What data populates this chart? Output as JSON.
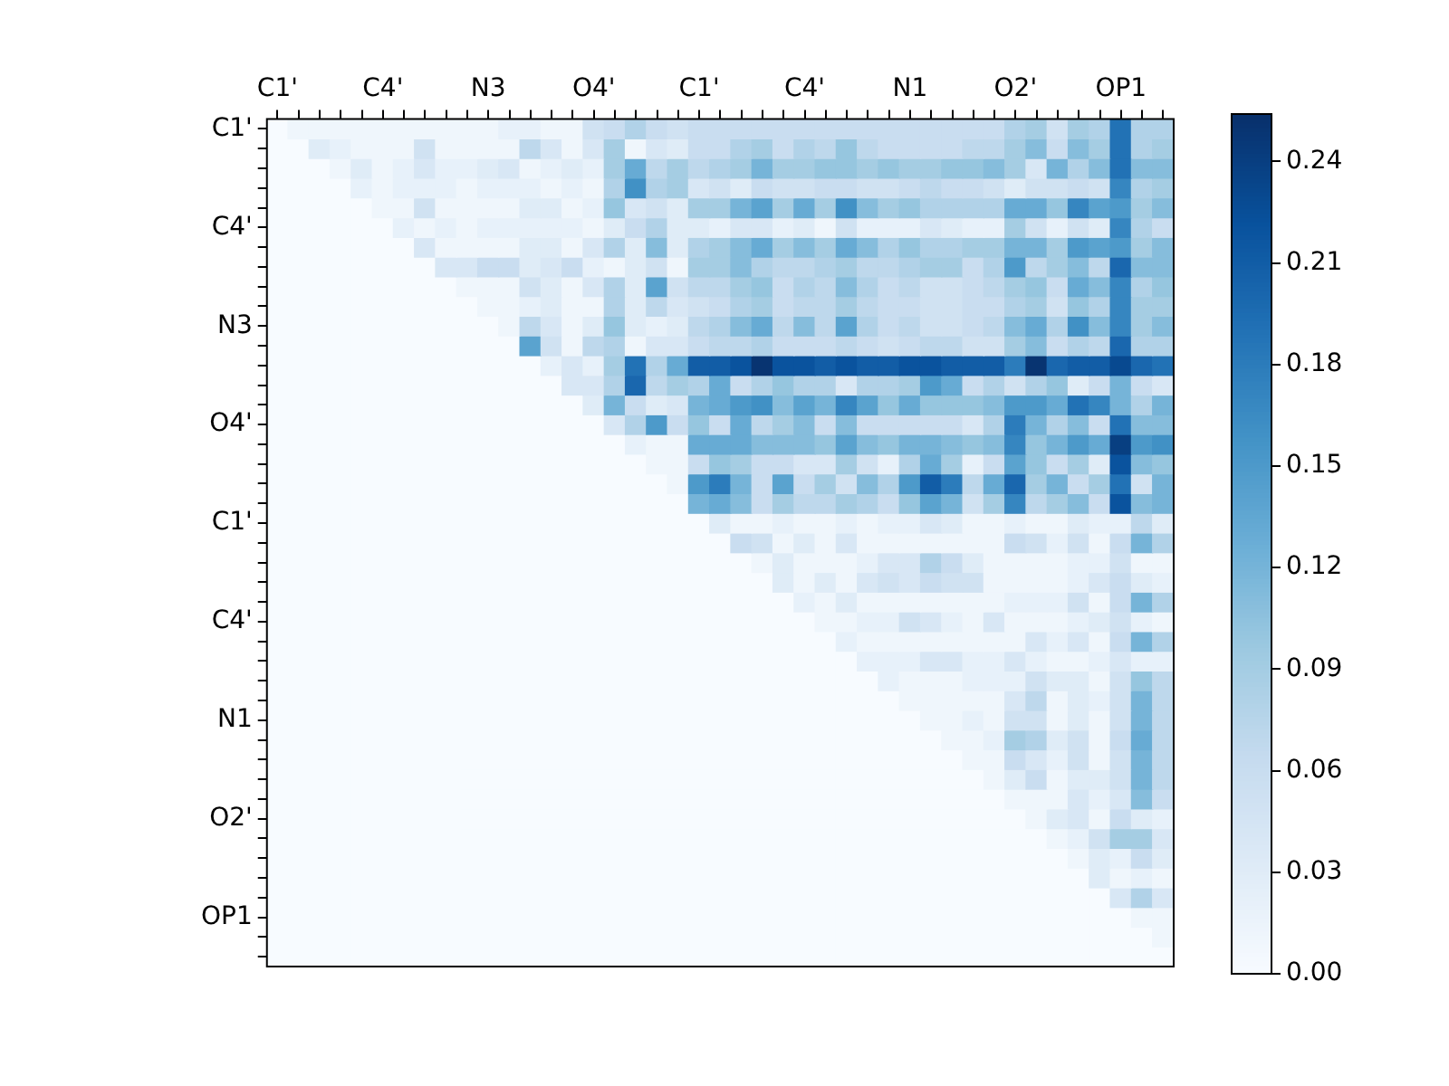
{
  "chart_data": {
    "type": "heatmap",
    "categories": [
      "C1'",
      null,
      null,
      null,
      null,
      "C4'",
      null,
      null,
      null,
      null,
      "N3",
      null,
      null,
      null,
      null,
      "O4'",
      null,
      null,
      null,
      null,
      "C1'",
      null,
      null,
      null,
      null,
      "C4'",
      null,
      null,
      null,
      null,
      "N1",
      null,
      null,
      null,
      null,
      "O2'",
      null,
      null,
      null,
      null,
      "OP1",
      null,
      null
    ],
    "y_categories": [
      "C1'",
      null,
      null,
      null,
      null,
      "C4'",
      null,
      null,
      null,
      null,
      "N3",
      null,
      null,
      null,
      null,
      "O4'",
      null,
      null,
      null,
      null,
      "C1'",
      null,
      null,
      null,
      null,
      "C4'",
      null,
      null,
      null,
      null,
      "N1",
      null,
      null,
      null,
      null,
      "O2'",
      null,
      null,
      null,
      null,
      "OP1",
      null,
      null
    ],
    "clim": [
      0,
      0.254
    ],
    "cticks": [
      {
        "value": 0,
        "label": "0.00"
      },
      {
        "value": 0.03,
        "label": "0.03"
      },
      {
        "value": 0.06,
        "label": "0.06"
      },
      {
        "value": 0.09,
        "label": "0.09"
      },
      {
        "value": 0.12,
        "label": "0.12"
      },
      {
        "value": 0.15,
        "label": "0.15"
      },
      {
        "value": 0.18,
        "label": "0.18"
      },
      {
        "value": 0.21,
        "label": "0.21"
      },
      {
        "value": 0.24,
        "label": "0.24"
      }
    ],
    "cells": [
      [
        0,
        0.01,
        0.01,
        0.01,
        0.01,
        0.01,
        0.01,
        0.01,
        0.01,
        0.01,
        0.01,
        0.02,
        0.02,
        0.01,
        0.01,
        0.05,
        0.06,
        0.08,
        0.06,
        0.05,
        0.06,
        0.06,
        0.06,
        0.06,
        0.06,
        0.06,
        0.06,
        0.06,
        0.06,
        0.06,
        0.06,
        0.06,
        0.06,
        0.06,
        0.06,
        0.08,
        0.09,
        0.05,
        0.09,
        0.08,
        0.19,
        0.08,
        0.08
      ],
      [
        0,
        0,
        0.03,
        0.02,
        0.01,
        0.01,
        0.01,
        0.05,
        0.01,
        0.01,
        0.01,
        0.01,
        0.07,
        0.04,
        0.01,
        0.04,
        0.09,
        0.01,
        0.04,
        0.03,
        0.06,
        0.06,
        0.08,
        0.09,
        0.06,
        0.08,
        0.07,
        0.1,
        0.07,
        0.06,
        0.06,
        0.06,
        0.06,
        0.07,
        0.07,
        0.09,
        0.11,
        0.06,
        0.11,
        0.09,
        0.19,
        0.08,
        0.09
      ],
      [
        0,
        0,
        0,
        0.01,
        0.03,
        0.01,
        0.02,
        0.04,
        0.02,
        0.02,
        0.03,
        0.04,
        0.01,
        0.02,
        0.03,
        0.02,
        0.09,
        0.13,
        0.07,
        0.09,
        0.07,
        0.08,
        0.09,
        0.12,
        0.09,
        0.09,
        0.1,
        0.1,
        0.09,
        0.1,
        0.09,
        0.09,
        0.1,
        0.1,
        0.11,
        0.09,
        0.04,
        0.12,
        0.08,
        0.11,
        0.19,
        0.11,
        0.11
      ],
      [
        0,
        0,
        0,
        0,
        0.02,
        0.01,
        0.02,
        0.02,
        0.02,
        0.01,
        0.02,
        0.02,
        0.02,
        0.01,
        0.02,
        0.01,
        0.08,
        0.16,
        0.08,
        0.09,
        0.04,
        0.05,
        0.03,
        0.06,
        0.05,
        0.05,
        0.06,
        0.06,
        0.05,
        0.05,
        0.06,
        0.07,
        0.06,
        0.06,
        0.05,
        0.03,
        0.05,
        0.05,
        0.06,
        0.05,
        0.17,
        0.08,
        0.09
      ],
      [
        0,
        0,
        0,
        0,
        0,
        0.01,
        0.01,
        0.05,
        0.01,
        0.01,
        0.01,
        0.01,
        0.03,
        0.03,
        0.01,
        0.02,
        0.1,
        0.04,
        0.05,
        0.03,
        0.09,
        0.09,
        0.12,
        0.14,
        0.09,
        0.13,
        0.09,
        0.16,
        0.11,
        0.09,
        0.1,
        0.08,
        0.08,
        0.08,
        0.08,
        0.13,
        0.13,
        0.1,
        0.17,
        0.14,
        0.15,
        0.09,
        0.11
      ],
      [
        0,
        0,
        0,
        0,
        0,
        0,
        0.02,
        0.01,
        0.02,
        0.01,
        0.02,
        0.02,
        0.02,
        0.02,
        0.02,
        0.01,
        0.03,
        0.06,
        0.08,
        0.03,
        0.03,
        0.02,
        0.04,
        0.04,
        0.02,
        0.03,
        0.01,
        0.05,
        0.02,
        0.02,
        0.02,
        0.04,
        0.03,
        0.02,
        0.02,
        0.09,
        0.05,
        0.02,
        0.05,
        0.03,
        0.17,
        0.08,
        0.06
      ],
      [
        0,
        0,
        0,
        0,
        0,
        0,
        0,
        0.04,
        0.01,
        0.01,
        0.01,
        0.01,
        0.03,
        0.03,
        0.01,
        0.04,
        0.08,
        0.03,
        0.11,
        0.03,
        0.08,
        0.09,
        0.11,
        0.13,
        0.09,
        0.11,
        0.09,
        0.13,
        0.11,
        0.08,
        0.1,
        0.08,
        0.08,
        0.09,
        0.09,
        0.12,
        0.12,
        0.09,
        0.15,
        0.14,
        0.15,
        0.09,
        0.11
      ],
      [
        0,
        0,
        0,
        0,
        0,
        0,
        0,
        0,
        0.04,
        0.04,
        0.06,
        0.06,
        0.03,
        0.04,
        0.06,
        0.02,
        0.01,
        0.03,
        0.05,
        0.01,
        0.09,
        0.09,
        0.11,
        0.08,
        0.07,
        0.07,
        0.08,
        0.09,
        0.07,
        0.07,
        0.08,
        0.09,
        0.09,
        0.06,
        0.08,
        0.15,
        0.07,
        0.09,
        0.11,
        0.07,
        0.2,
        0.11,
        0.11
      ],
      [
        0,
        0,
        0,
        0,
        0,
        0,
        0,
        0,
        0,
        0.01,
        0.01,
        0.01,
        0.05,
        0.03,
        0.01,
        0.04,
        0.08,
        0.03,
        0.14,
        0.05,
        0.07,
        0.07,
        0.09,
        0.1,
        0.06,
        0.08,
        0.07,
        0.11,
        0.08,
        0.06,
        0.07,
        0.05,
        0.05,
        0.06,
        0.07,
        0.09,
        0.1,
        0.06,
        0.13,
        0.11,
        0.17,
        0.08,
        0.1
      ],
      [
        0,
        0,
        0,
        0,
        0,
        0,
        0,
        0,
        0,
        0,
        0.01,
        0.01,
        0.02,
        0.03,
        0.01,
        0.01,
        0.08,
        0.03,
        0.07,
        0.04,
        0.05,
        0.06,
        0.08,
        0.09,
        0.06,
        0.07,
        0.07,
        0.09,
        0.07,
        0.06,
        0.06,
        0.05,
        0.05,
        0.06,
        0.06,
        0.08,
        0.09,
        0.05,
        0.1,
        0.08,
        0.17,
        0.09,
        0.09
      ],
      [
        0,
        0,
        0,
        0,
        0,
        0,
        0,
        0,
        0,
        0,
        0,
        0.01,
        0.07,
        0.04,
        0.01,
        0.03,
        0.1,
        0.03,
        0.02,
        0.03,
        0.07,
        0.08,
        0.11,
        0.13,
        0.07,
        0.11,
        0.07,
        0.14,
        0.08,
        0.06,
        0.07,
        0.05,
        0.05,
        0.06,
        0.07,
        0.11,
        0.13,
        0.08,
        0.16,
        0.11,
        0.17,
        0.09,
        0.11
      ],
      [
        0,
        0,
        0,
        0,
        0,
        0,
        0,
        0,
        0,
        0,
        0,
        0,
        0.14,
        0.05,
        0.01,
        0.07,
        0.08,
        0.01,
        0.04,
        0.04,
        0.06,
        0.07,
        0.07,
        0.08,
        0.06,
        0.06,
        0.06,
        0.07,
        0.06,
        0.05,
        0.06,
        0.07,
        0.07,
        0.05,
        0.05,
        0.09,
        0.11,
        0.06,
        0.08,
        0.07,
        0.2,
        0.08,
        0.08
      ],
      [
        0,
        0,
        0,
        0,
        0,
        0,
        0,
        0,
        0,
        0,
        0,
        0,
        0,
        0.02,
        0.04,
        0.02,
        0.09,
        0.19,
        0.08,
        0.13,
        0.21,
        0.21,
        0.22,
        0.25,
        0.22,
        0.22,
        0.21,
        0.22,
        0.21,
        0.21,
        0.22,
        0.22,
        0.21,
        0.21,
        0.21,
        0.18,
        0.25,
        0.2,
        0.21,
        0.21,
        0.23,
        0.2,
        0.19
      ],
      [
        0,
        0,
        0,
        0,
        0,
        0,
        0,
        0,
        0,
        0,
        0,
        0,
        0,
        0,
        0.04,
        0.04,
        0.08,
        0.2,
        0.07,
        0.09,
        0.08,
        0.13,
        0.06,
        0.08,
        0.1,
        0.08,
        0.08,
        0.04,
        0.08,
        0.08,
        0.09,
        0.15,
        0.13,
        0.06,
        0.08,
        0.05,
        0.08,
        0.1,
        0.03,
        0.06,
        0.12,
        0.06,
        0.04
      ],
      [
        0,
        0,
        0,
        0,
        0,
        0,
        0,
        0,
        0,
        0,
        0,
        0,
        0,
        0,
        0,
        0.03,
        0.12,
        0.06,
        0.03,
        0.04,
        0.12,
        0.13,
        0.15,
        0.16,
        0.11,
        0.14,
        0.12,
        0.17,
        0.14,
        0.1,
        0.13,
        0.1,
        0.1,
        0.1,
        0.11,
        0.15,
        0.15,
        0.13,
        0.19,
        0.17,
        0.12,
        0.08,
        0.12
      ],
      [
        0,
        0,
        0,
        0,
        0,
        0,
        0,
        0,
        0,
        0,
        0,
        0,
        0,
        0,
        0,
        0,
        0.04,
        0.08,
        0.15,
        0.06,
        0.1,
        0.06,
        0.13,
        0.07,
        0.09,
        0.11,
        0.06,
        0.11,
        0.06,
        0.06,
        0.06,
        0.06,
        0.06,
        0.04,
        0.08,
        0.18,
        0.12,
        0.08,
        0.11,
        0.06,
        0.19,
        0.11,
        0.11
      ],
      [
        0,
        0,
        0,
        0,
        0,
        0,
        0,
        0,
        0,
        0,
        0,
        0,
        0,
        0,
        0,
        0,
        0,
        0.02,
        0.01,
        0.01,
        0.13,
        0.13,
        0.13,
        0.11,
        0.11,
        0.11,
        0.1,
        0.14,
        0.11,
        0.1,
        0.12,
        0.12,
        0.11,
        0.1,
        0.11,
        0.17,
        0.1,
        0.12,
        0.15,
        0.13,
        0.24,
        0.15,
        0.16
      ],
      [
        0,
        0,
        0,
        0,
        0,
        0,
        0,
        0,
        0,
        0,
        0,
        0,
        0,
        0,
        0,
        0,
        0,
        0,
        0.01,
        0.01,
        0.06,
        0.1,
        0.09,
        0.06,
        0.06,
        0.04,
        0.04,
        0.09,
        0.05,
        0.02,
        0.08,
        0.13,
        0.09,
        0.02,
        0.06,
        0.14,
        0.1,
        0.06,
        0.09,
        0.03,
        0.22,
        0.11,
        0.1
      ],
      [
        0,
        0,
        0,
        0,
        0,
        0,
        0,
        0,
        0,
        0,
        0,
        0,
        0,
        0,
        0,
        0,
        0,
        0,
        0,
        0.01,
        0.15,
        0.18,
        0.12,
        0.06,
        0.14,
        0.06,
        0.09,
        0.05,
        0.11,
        0.08,
        0.15,
        0.21,
        0.18,
        0.07,
        0.13,
        0.2,
        0.09,
        0.12,
        0.06,
        0.09,
        0.19,
        0.05,
        0.12
      ],
      [
        0,
        0,
        0,
        0,
        0,
        0,
        0,
        0,
        0,
        0,
        0,
        0,
        0,
        0,
        0,
        0,
        0,
        0,
        0,
        0,
        0.12,
        0.13,
        0.11,
        0.06,
        0.09,
        0.07,
        0.07,
        0.09,
        0.08,
        0.06,
        0.1,
        0.14,
        0.12,
        0.05,
        0.09,
        0.17,
        0.07,
        0.09,
        0.11,
        0.06,
        0.22,
        0.11,
        0.12
      ],
      [
        0,
        0,
        0,
        0,
        0,
        0,
        0,
        0,
        0,
        0,
        0,
        0,
        0,
        0,
        0,
        0,
        0,
        0,
        0,
        0,
        0,
        0.03,
        0.01,
        0.01,
        0.02,
        0.01,
        0.01,
        0.02,
        0.01,
        0.02,
        0.02,
        0.04,
        0.03,
        0.01,
        0.01,
        0.02,
        0.01,
        0.01,
        0.03,
        0.02,
        0.02,
        0.07,
        0.03
      ],
      [
        0,
        0,
        0,
        0,
        0,
        0,
        0,
        0,
        0,
        0,
        0,
        0,
        0,
        0,
        0,
        0,
        0,
        0,
        0,
        0,
        0,
        0,
        0.06,
        0.05,
        0.01,
        0.03,
        0.01,
        0.04,
        0.01,
        0.01,
        0.01,
        0.01,
        0.01,
        0.01,
        0.01,
        0.06,
        0.05,
        0.02,
        0.05,
        0.01,
        0.06,
        0.12,
        0.08
      ],
      [
        0,
        0,
        0,
        0,
        0,
        0,
        0,
        0,
        0,
        0,
        0,
        0,
        0,
        0,
        0,
        0,
        0,
        0,
        0,
        0,
        0,
        0,
        0,
        0.01,
        0.03,
        0.01,
        0.01,
        0.01,
        0.02,
        0.04,
        0.04,
        0.08,
        0.06,
        0.03,
        0.01,
        0.01,
        0.01,
        0.01,
        0.02,
        0.02,
        0.05,
        0.01,
        0.01
      ],
      [
        0,
        0,
        0,
        0,
        0,
        0,
        0,
        0,
        0,
        0,
        0,
        0,
        0,
        0,
        0,
        0,
        0,
        0,
        0,
        0,
        0,
        0,
        0,
        0,
        0.03,
        0.01,
        0.03,
        0.01,
        0.04,
        0.05,
        0.04,
        0.06,
        0.05,
        0.05,
        0.01,
        0.01,
        0.01,
        0.01,
        0.02,
        0.04,
        0.06,
        0.03,
        0.02
      ],
      [
        0,
        0,
        0,
        0,
        0,
        0,
        0,
        0,
        0,
        0,
        0,
        0,
        0,
        0,
        0,
        0,
        0,
        0,
        0,
        0,
        0,
        0,
        0,
        0,
        0,
        0.02,
        0.01,
        0.03,
        0.01,
        0.01,
        0.01,
        0.01,
        0.01,
        0.01,
        0.01,
        0.02,
        0.02,
        0.02,
        0.05,
        0.01,
        0.06,
        0.12,
        0.08
      ],
      [
        0,
        0,
        0,
        0,
        0,
        0,
        0,
        0,
        0,
        0,
        0,
        0,
        0,
        0,
        0,
        0,
        0,
        0,
        0,
        0,
        0,
        0,
        0,
        0,
        0,
        0,
        0.01,
        0.01,
        0.02,
        0.02,
        0.05,
        0.04,
        0.02,
        0.01,
        0.04,
        0.01,
        0.01,
        0.01,
        0.02,
        0.03,
        0.05,
        0.02,
        0.01
      ],
      [
        0,
        0,
        0,
        0,
        0,
        0,
        0,
        0,
        0,
        0,
        0,
        0,
        0,
        0,
        0,
        0,
        0,
        0,
        0,
        0,
        0,
        0,
        0,
        0,
        0,
        0,
        0,
        0.02,
        0.01,
        0.01,
        0.01,
        0.01,
        0.01,
        0.01,
        0.01,
        0.01,
        0.04,
        0.02,
        0.04,
        0.01,
        0.06,
        0.12,
        0.08
      ],
      [
        0,
        0,
        0,
        0,
        0,
        0,
        0,
        0,
        0,
        0,
        0,
        0,
        0,
        0,
        0,
        0,
        0,
        0,
        0,
        0,
        0,
        0,
        0,
        0,
        0,
        0,
        0,
        0,
        0.02,
        0.02,
        0.02,
        0.04,
        0.04,
        0.02,
        0.02,
        0.04,
        0.02,
        0.01,
        0.01,
        0.02,
        0.04,
        0.02,
        0.02
      ],
      [
        0,
        0,
        0,
        0,
        0,
        0,
        0,
        0,
        0,
        0,
        0,
        0,
        0,
        0,
        0,
        0,
        0,
        0,
        0,
        0,
        0,
        0,
        0,
        0,
        0,
        0,
        0,
        0,
        0,
        0.02,
        0.01,
        0.01,
        0.01,
        0.02,
        0.02,
        0.02,
        0.05,
        0.03,
        0.03,
        0.01,
        0.05,
        0.1,
        0.07
      ],
      [
        0,
        0,
        0,
        0,
        0,
        0,
        0,
        0,
        0,
        0,
        0,
        0,
        0,
        0,
        0,
        0,
        0,
        0,
        0,
        0,
        0,
        0,
        0,
        0,
        0,
        0,
        0,
        0,
        0,
        0,
        0.01,
        0.01,
        0.01,
        0.01,
        0.01,
        0.04,
        0.07,
        0.01,
        0.03,
        0.02,
        0.05,
        0.12,
        0.07
      ],
      [
        0,
        0,
        0,
        0,
        0,
        0,
        0,
        0,
        0,
        0,
        0,
        0,
        0,
        0,
        0,
        0,
        0,
        0,
        0,
        0,
        0,
        0,
        0,
        0,
        0,
        0,
        0,
        0,
        0,
        0,
        0,
        0.01,
        0.01,
        0.02,
        0.01,
        0.05,
        0.05,
        0.01,
        0.03,
        0.01,
        0.05,
        0.12,
        0.07
      ],
      [
        0,
        0,
        0,
        0,
        0,
        0,
        0,
        0,
        0,
        0,
        0,
        0,
        0,
        0,
        0,
        0,
        0,
        0,
        0,
        0,
        0,
        0,
        0,
        0,
        0,
        0,
        0,
        0,
        0,
        0,
        0,
        0,
        0.01,
        0.01,
        0.02,
        0.09,
        0.08,
        0.03,
        0.05,
        0.01,
        0.06,
        0.13,
        0.07
      ],
      [
        0,
        0,
        0,
        0,
        0,
        0,
        0,
        0,
        0,
        0,
        0,
        0,
        0,
        0,
        0,
        0,
        0,
        0,
        0,
        0,
        0,
        0,
        0,
        0,
        0,
        0,
        0,
        0,
        0,
        0,
        0,
        0,
        0,
        0.01,
        0.01,
        0.06,
        0.04,
        0.02,
        0.05,
        0.01,
        0.05,
        0.12,
        0.07
      ],
      [
        0,
        0,
        0,
        0,
        0,
        0,
        0,
        0,
        0,
        0,
        0,
        0,
        0,
        0,
        0,
        0,
        0,
        0,
        0,
        0,
        0,
        0,
        0,
        0,
        0,
        0,
        0,
        0,
        0,
        0,
        0,
        0,
        0,
        0,
        0.01,
        0.03,
        0.06,
        0.01,
        0.03,
        0.03,
        0.05,
        0.12,
        0.07
      ],
      [
        0,
        0,
        0,
        0,
        0,
        0,
        0,
        0,
        0,
        0,
        0,
        0,
        0,
        0,
        0,
        0,
        0,
        0,
        0,
        0,
        0,
        0,
        0,
        0,
        0,
        0,
        0,
        0,
        0,
        0,
        0,
        0,
        0,
        0,
        0,
        0.01,
        0.01,
        0.01,
        0.04,
        0.02,
        0.04,
        0.11,
        0.06
      ],
      [
        0,
        0,
        0,
        0,
        0,
        0,
        0,
        0,
        0,
        0,
        0,
        0,
        0,
        0,
        0,
        0,
        0,
        0,
        0,
        0,
        0,
        0,
        0,
        0,
        0,
        0,
        0,
        0,
        0,
        0,
        0,
        0,
        0,
        0,
        0,
        0,
        0.01,
        0.03,
        0.04,
        0.01,
        0.06,
        0.03,
        0.02
      ],
      [
        0,
        0,
        0,
        0,
        0,
        0,
        0,
        0,
        0,
        0,
        0,
        0,
        0,
        0,
        0,
        0,
        0,
        0,
        0,
        0,
        0,
        0,
        0,
        0,
        0,
        0,
        0,
        0,
        0,
        0,
        0,
        0,
        0,
        0,
        0,
        0,
        0,
        0.01,
        0.02,
        0.05,
        0.09,
        0.09,
        0.04
      ],
      [
        0,
        0,
        0,
        0,
        0,
        0,
        0,
        0,
        0,
        0,
        0,
        0,
        0,
        0,
        0,
        0,
        0,
        0,
        0,
        0,
        0,
        0,
        0,
        0,
        0,
        0,
        0,
        0,
        0,
        0,
        0,
        0,
        0,
        0,
        0,
        0,
        0,
        0,
        0.01,
        0.03,
        0.02,
        0.06,
        0.03
      ],
      [
        0,
        0,
        0,
        0,
        0,
        0,
        0,
        0,
        0,
        0,
        0,
        0,
        0,
        0,
        0,
        0,
        0,
        0,
        0,
        0,
        0,
        0,
        0,
        0,
        0,
        0,
        0,
        0,
        0,
        0,
        0,
        0,
        0,
        0,
        0,
        0,
        0,
        0,
        0,
        0.03,
        0.01,
        0.02,
        0.01
      ],
      [
        0,
        0,
        0,
        0,
        0,
        0,
        0,
        0,
        0,
        0,
        0,
        0,
        0,
        0,
        0,
        0,
        0,
        0,
        0,
        0,
        0,
        0,
        0,
        0,
        0,
        0,
        0,
        0,
        0,
        0,
        0,
        0,
        0,
        0,
        0,
        0,
        0,
        0,
        0,
        0,
        0.04,
        0.08,
        0.04
      ],
      [
        0,
        0,
        0,
        0,
        0,
        0,
        0,
        0,
        0,
        0,
        0,
        0,
        0,
        0,
        0,
        0,
        0,
        0,
        0,
        0,
        0,
        0,
        0,
        0,
        0,
        0,
        0,
        0,
        0,
        0,
        0,
        0,
        0,
        0,
        0,
        0,
        0,
        0,
        0,
        0,
        0,
        0.01,
        0.01
      ],
      [
        0,
        0,
        0,
        0,
        0,
        0,
        0,
        0,
        0,
        0,
        0,
        0,
        0,
        0,
        0,
        0,
        0,
        0,
        0,
        0,
        0,
        0,
        0,
        0,
        0,
        0,
        0,
        0,
        0,
        0,
        0,
        0,
        0,
        0,
        0,
        0,
        0,
        0,
        0,
        0,
        0,
        0,
        0.01
      ],
      [
        0,
        0,
        0,
        0,
        0,
        0,
        0,
        0,
        0,
        0,
        0,
        0,
        0,
        0,
        0,
        0,
        0,
        0,
        0,
        0,
        0,
        0,
        0,
        0,
        0,
        0,
        0,
        0,
        0,
        0,
        0,
        0,
        0,
        0,
        0,
        0,
        0,
        0,
        0,
        0,
        0,
        0,
        0
      ]
    ]
  }
}
